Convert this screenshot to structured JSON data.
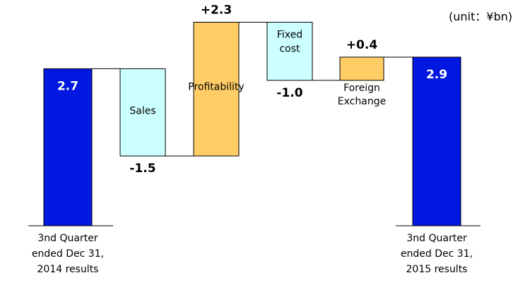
{
  "unit_label": "(unit：¥bn)",
  "chart_data": {
    "type": "waterfall",
    "title": "",
    "ylim": [
      0,
      3.7
    ],
    "colors": {
      "total": "#0018e0",
      "decrease": "#ccffff",
      "increase": "#ffcc66",
      "border": "#000000",
      "total_label": "#ffffff",
      "value_label": "#000000"
    },
    "steps": [
      {
        "name": "3nd Quarter ended Dec 31, 2014 results",
        "label_lines": [
          "3nd Quarter",
          "ended Dec 31,",
          "2014 results"
        ],
        "kind": "total",
        "value": 2.7,
        "display": "2.7"
      },
      {
        "name": "Sales",
        "label_lines": [
          "Sales"
        ],
        "kind": "decrease",
        "value": -1.5,
        "display": "-1.5"
      },
      {
        "name": "Profitability",
        "label_lines": [
          "Profitability"
        ],
        "kind": "increase",
        "value": 2.3,
        "display": "+2.3"
      },
      {
        "name": "Fixed cost",
        "label_lines": [
          "Fixed",
          "cost"
        ],
        "kind": "decrease",
        "value": -1.0,
        "display": "-1.0"
      },
      {
        "name": "Foreign Exchange",
        "label_lines": [
          "Foreign",
          "Exchange"
        ],
        "kind": "increase",
        "value": 0.4,
        "display": "+0.4"
      },
      {
        "name": "3nd Quarter ended Dec 31, 2015 results",
        "label_lines": [
          "3nd Quarter",
          "ended Dec 31,",
          "2015 results"
        ],
        "kind": "total",
        "value": 2.9,
        "display": "2.9"
      }
    ]
  }
}
